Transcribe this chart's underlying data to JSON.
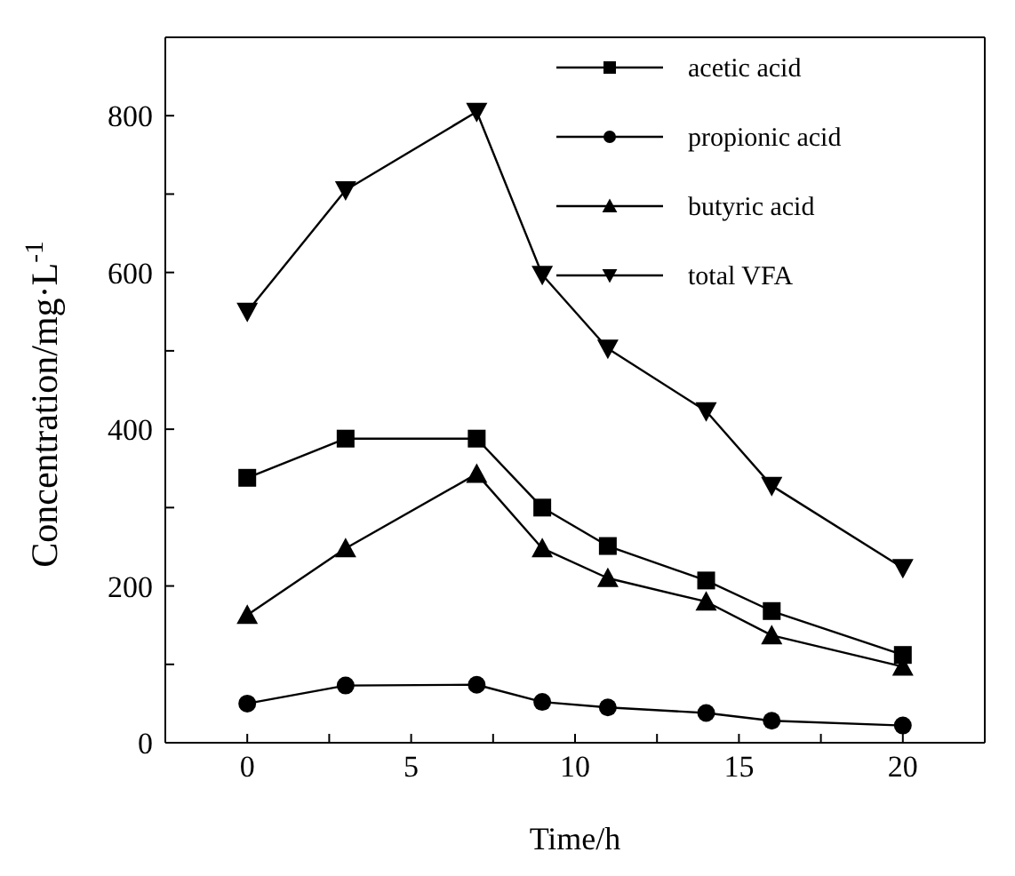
{
  "chart_data": {
    "type": "line",
    "xlabel": "Time/h",
    "ylabel": "Concentration/mg·L$^{-1}$",
    "x": [
      0,
      3,
      7,
      9,
      11,
      14,
      16,
      20
    ],
    "xlim": [
      -2.5,
      22.5
    ],
    "xticks": [
      0,
      {
        "value": 2.5,
        "label": null
      },
      5,
      {
        "value": 7.5,
        "label": null
      },
      10,
      {
        "value": 12.5,
        "label": null
      },
      15,
      {
        "value": 17.5,
        "label": null
      },
      20
    ],
    "ylim": [
      0,
      900
    ],
    "yticks": [
      0,
      {
        "value": 100,
        "label": null
      },
      200,
      {
        "value": 300,
        "label": null
      },
      400,
      {
        "value": 500,
        "label": null
      },
      600,
      {
        "value": 700,
        "label": null
      },
      800
    ],
    "grid": false,
    "legend": "top right",
    "line_style": "solid",
    "series": [
      {
        "name": "acetic acid",
        "color": "#000000",
        "marker": "square",
        "values": [
          338,
          388,
          388,
          300,
          251,
          207,
          168,
          112
        ]
      },
      {
        "name": "propionic acid",
        "color": "#000000",
        "marker": "circle",
        "values": [
          50,
          73,
          74,
          52,
          45,
          38,
          28,
          22
        ]
      },
      {
        "name": "butyric acid",
        "color": "#000000",
        "marker": "triangle",
        "values": [
          163,
          248,
          343,
          248,
          210,
          180,
          137,
          97
        ]
      },
      {
        "name": "total VFA",
        "color": "#000000",
        "marker": "triangle-down",
        "values": [
          550,
          705,
          805,
          597,
          503,
          423,
          328,
          223
        ]
      }
    ]
  }
}
